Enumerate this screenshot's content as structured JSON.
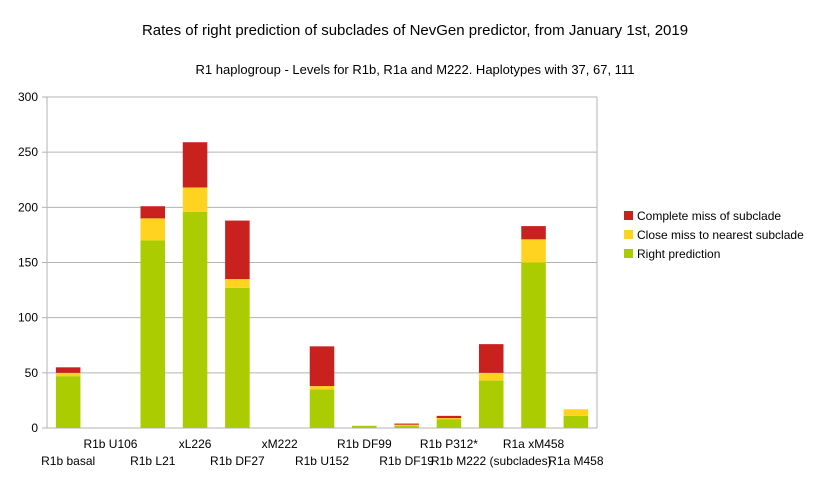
{
  "chart_data": {
    "type": "bar",
    "stacked": true,
    "title": "Rates of right prediction of subclades of NevGen predictor, from January 1st, 2019",
    "subtitle": "R1 haplogroup - Levels for R1b, R1a and M222. Haplotypes with 37, 67, 111",
    "xlabel": "",
    "ylabel": "",
    "ylim": [
      0,
      300
    ],
    "yticks": [
      0,
      50,
      100,
      150,
      200,
      250,
      300
    ],
    "grid": true,
    "legend_position": "right",
    "categories": [
      "R1b basal",
      "R1b U106",
      "R1b L21",
      "xL226",
      "R1b DF27",
      "xM222",
      "R1b U152",
      "R1b DF99",
      "R1b DF19",
      "R1b P312*",
      "R1b M222 (subclades)",
      "R1a xM458",
      "R1a M458"
    ],
    "series": [
      {
        "name": "Right prediction",
        "color": "#aacc00",
        "values": [
          47,
          0,
          170,
          196,
          127,
          0,
          35,
          2,
          2,
          8,
          43,
          150,
          11
        ]
      },
      {
        "name": "Close miss to nearest subclade",
        "color": "#ffd320",
        "values": [
          3,
          0,
          20,
          22,
          8,
          0,
          3,
          0,
          1,
          1,
          7,
          21,
          6
        ]
      },
      {
        "name": "Complete miss of subclade",
        "color": "#c9211e",
        "values": [
          5,
          0,
          11,
          41,
          53,
          0,
          36,
          0,
          1,
          2,
          26,
          12,
          0
        ]
      }
    ]
  }
}
